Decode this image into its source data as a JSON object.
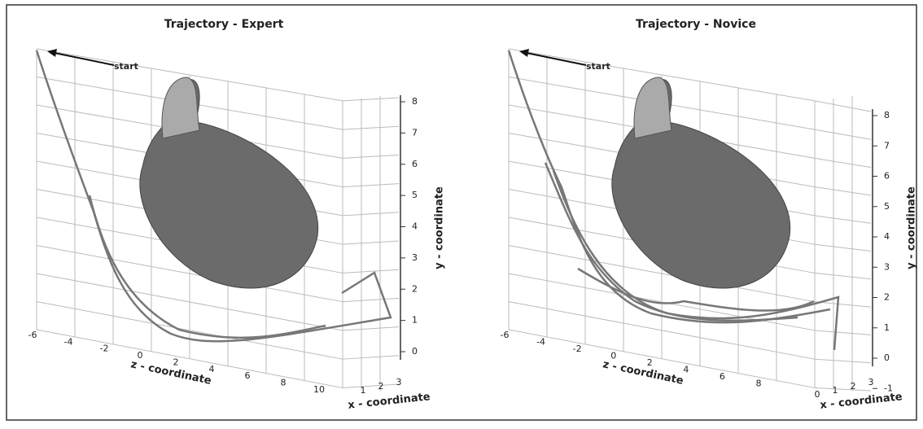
{
  "panels": [
    {
      "title": "Trajectory - Expert",
      "annotation": "start",
      "y_label": "y - coordinate",
      "z_label": "z - coordinate",
      "x_label": "x - coordinate",
      "y_ticks": [
        0,
        1,
        2,
        3,
        4,
        5,
        6,
        7,
        8
      ],
      "z_ticks": [
        -6,
        -4,
        -2,
        0,
        2,
        4,
        6,
        8,
        10
      ],
      "x_ticks": [
        1,
        2,
        3
      ]
    },
    {
      "title": "Trajectory - Novice",
      "annotation": "start",
      "y_label": "y - coordinate",
      "z_label": "z - coordinate",
      "x_label": "x - coordinate",
      "y_ticks": [
        -1,
        0,
        1,
        2,
        3,
        4,
        5,
        6,
        7,
        8
      ],
      "z_ticks": [
        -6,
        -4,
        -2,
        0,
        2,
        4,
        6,
        8
      ],
      "x_ticks": [
        0,
        1,
        2,
        3
      ]
    }
  ]
}
